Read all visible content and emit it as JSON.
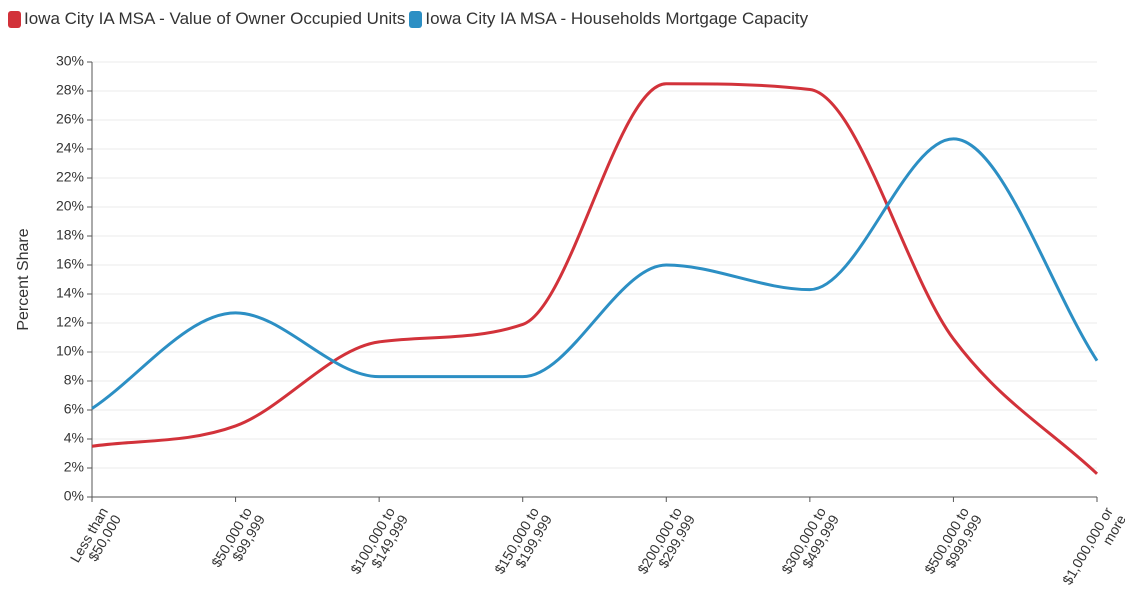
{
  "chart_data": {
    "type": "line",
    "categories": [
      "Less than $50,000",
      "$50,000 to $99,999",
      "$100,000 to $149,999",
      "$150,000 to $199,999",
      "$200,000 to $299,999",
      "$300,000 to $499,999",
      "$500,000 to $999,999",
      "$1,000,000 or more"
    ],
    "series": [
      {
        "name": "Iowa City IA MSA - Value of Owner Occupied Units",
        "color": "#d2323a",
        "values": [
          3.5,
          4.9,
          10.7,
          11.9,
          28.5,
          28.1,
          10.9,
          1.6
        ]
      },
      {
        "name": "Iowa City IA MSA - Households Mortgage Capacity",
        "color": "#2c8fc4",
        "values": [
          6.1,
          12.7,
          8.3,
          8.3,
          16.0,
          14.3,
          24.7,
          9.4
        ]
      }
    ],
    "y_label": "Percent Share",
    "ylim": [
      0,
      30
    ],
    "yticks": [
      {
        "value": 0,
        "label": "0%"
      },
      {
        "value": 2,
        "label": "2%"
      },
      {
        "value": 4,
        "label": "4%"
      },
      {
        "value": 6,
        "label": "6%"
      },
      {
        "value": 8,
        "label": "8%"
      },
      {
        "value": 10,
        "label": "10%"
      },
      {
        "value": 12,
        "label": "12%"
      },
      {
        "value": 14,
        "label": "14%"
      },
      {
        "value": 16,
        "label": "16%"
      },
      {
        "value": 18,
        "label": "18%"
      },
      {
        "value": 20,
        "label": "20%"
      },
      {
        "value": 22,
        "label": "22%"
      },
      {
        "value": 24,
        "label": "24%"
      },
      {
        "value": 26,
        "label": "26%"
      },
      {
        "value": 28,
        "label": "28%"
      },
      {
        "value": 30,
        "label": "30%"
      }
    ],
    "grid": true,
    "legend": "top-left"
  }
}
